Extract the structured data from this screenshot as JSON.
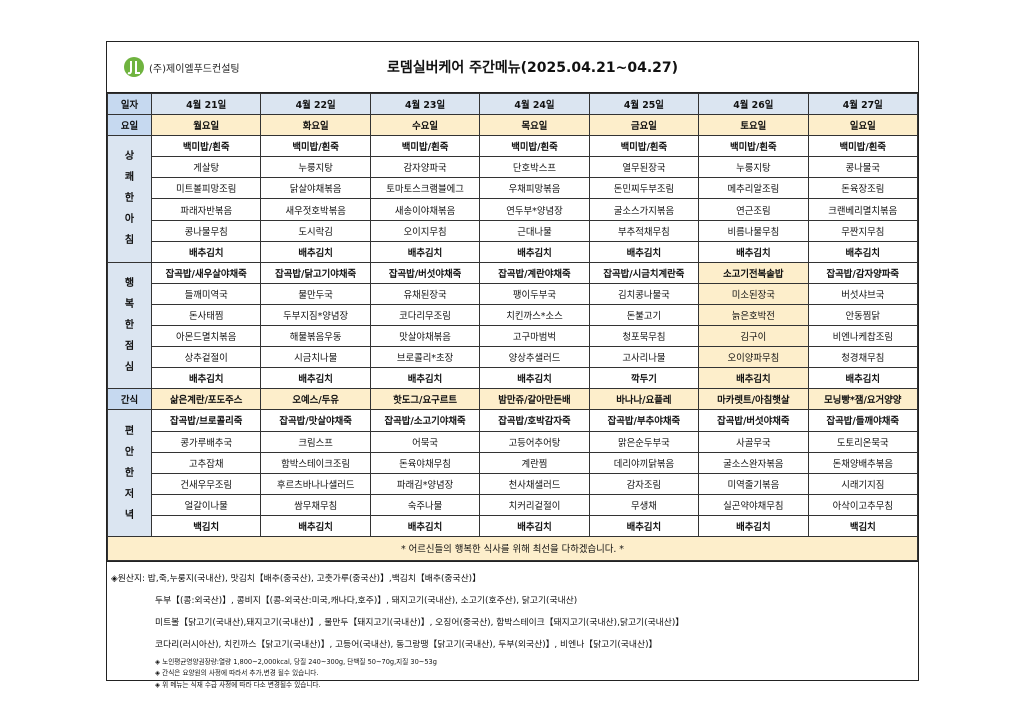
{
  "header": {
    "company": "(주)제이엘푸드컨설팅",
    "title": "로뎀실버케어 주간메뉴(2025.04.21~04.27)"
  },
  "labels": {
    "date": "일자",
    "weekday": "요일",
    "snack": "간식"
  },
  "sections": {
    "breakfast": "상쾌한아침",
    "lunch": "행복한점심",
    "dinner": "편안한저녁"
  },
  "days": [
    "4월 21일",
    "4월 22일",
    "4월 23일",
    "4월 24일",
    "4월 25일",
    "4월 26일",
    "4월 27일"
  ],
  "weekdays": [
    "월요일",
    "화요일",
    "수요일",
    "목요일",
    "금요일",
    "토요일",
    "일요일"
  ],
  "breakfast": [
    [
      "백미밥/흰죽",
      "백미밥/흰죽",
      "백미밥/흰죽",
      "백미밥/흰죽",
      "백미밥/흰죽",
      "백미밥/흰죽",
      "백미밥/흰죽"
    ],
    [
      "게살탕",
      "누룽지탕",
      "감자양파국",
      "단호박스프",
      "열무된장국",
      "누룽지탕",
      "콩나물국"
    ],
    [
      "미트볼피망조림",
      "닭살야채볶음",
      "토마토스크램블에그",
      "우채피망볶음",
      "돈민찌두부조림",
      "메추리알조림",
      "돈육장조림"
    ],
    [
      "파래자반볶음",
      "새우젓호박볶음",
      "새송이야채볶음",
      "연두부*양념장",
      "굴소스가지볶음",
      "연근조림",
      "크랜베리멸치볶음"
    ],
    [
      "콩나물무침",
      "도시락김",
      "오이지무침",
      "근대나물",
      "부추적채무침",
      "비름나물무침",
      "무짠지무침"
    ],
    [
      "배추김치",
      "배추김치",
      "배추김치",
      "배추김치",
      "배추김치",
      "배추김치",
      "배추김치"
    ]
  ],
  "lunch": [
    [
      "잡곡밥/새우살야채죽",
      "잡곡밥/닭고기야채죽",
      "잡곡밥/버섯야채죽",
      "잡곡밥/계란야채죽",
      "잡곡밥/시금치계란죽",
      "소고기전복솥밥",
      "잡곡밥/감자양파죽"
    ],
    [
      "들깨미역국",
      "물만두국",
      "유채된장국",
      "팽이두부국",
      "김치콩나물국",
      "미소된장국",
      "버섯샤브국"
    ],
    [
      "돈사태찜",
      "두부지짐*양념장",
      "코다리무조림",
      "치킨까스*소스",
      "돈불고기",
      "늙은호박전",
      "안동찜닭"
    ],
    [
      "아몬드멸치볶음",
      "해물볶음우동",
      "맛살야채볶음",
      "고구마범벅",
      "청포묵무침",
      "김구이",
      "비엔나케찹조림"
    ],
    [
      "상추겉절이",
      "시금치나물",
      "브로콜리*초장",
      "양상추샐러드",
      "고사리나물",
      "오이양파무침",
      "청경채무침"
    ],
    [
      "배추김치",
      "배추김치",
      "배추김치",
      "배추김치",
      "깍두기",
      "배추김치",
      "배추김치"
    ]
  ],
  "snack": [
    "삶은계란/포도주스",
    "오예스/두유",
    "핫도그/요구르트",
    "밤만쥬/갈아만든배",
    "바나나/요플레",
    "마카렛트/아침햇살",
    "모닝빵*잼/요거양양"
  ],
  "dinner": [
    [
      "잡곡밥/브로콜리죽",
      "잡곡밥/맛살야채죽",
      "잡곡밥/소고기야채죽",
      "잡곡밥/호박감자죽",
      "잡곡밥/부추야채죽",
      "잡곡밥/버섯야채죽",
      "잡곡밥/들깨야채죽"
    ],
    [
      "콩가루배추국",
      "크림스프",
      "어묵국",
      "고등어추어탕",
      "맑은순두부국",
      "사골무국",
      "도토리온묵국"
    ],
    [
      "고추잡채",
      "함박스테이크조림",
      "돈육야채무침",
      "계란찜",
      "데리야끼닭볶음",
      "굴소스완자볶음",
      "돈채양배추볶음"
    ],
    [
      "건새우무조림",
      "후르츠바나나샐러드",
      "파래김*양념장",
      "천사채샐러드",
      "감자조림",
      "미역줄기볶음",
      "시래기지짐"
    ],
    [
      "얼갈이나물",
      "쌈무채무침",
      "숙주나물",
      "치커리겉절이",
      "무생채",
      "실곤약야채무침",
      "아삭이고추무침"
    ],
    [
      "백김치",
      "배추김치",
      "배추김치",
      "배추김치",
      "배추김치",
      "배추김치",
      "백김치"
    ]
  ],
  "notice": "* 어르신들의 행복한 식사를 위해 최선을 다하겠습니다. *",
  "origin": [
    "◈원산지: 밥,죽,누룽지(국내산), 맛김치【배추(중국산), 고춧가루(중국산)】,백김치【배추(중국산)】",
    "두부【(콩:외국산)】, 콩비지【(콩-외국산:미국,캐나다,호주)】, 돼지고기(국내산), 소고기(호주산), 닭고기(국내산)",
    "미트볼【닭고기(국내산),돼지고기(국내산)】, 물만두【돼지고기(국내산)】, 오징어(중국산), 함박스테이크【돼지고기(국내산),닭고기(국내산)】",
    "코다리(러시아산), 치킨까스【닭고기(국내산)】, 고등어(국내산), 동그랑땡【닭고기(국내산), 두부(외국산)】, 비엔나【닭고기(국내산)】"
  ],
  "footnotes": [
    "◈ 노인평균영양권장량:열량 1,800~2,000kcal, 당질 240~300g, 단백질 50~70g,지질 30~53g",
    "◈ 간식은 요양원의 사정에 따라서 추가,변경 될수 있습니다.",
    "◈ 위 메뉴는 식재 수급 사정에 따라 다소 변경될수 있습니다."
  ],
  "highlight_color": "#fdeecb",
  "header_color": "#c6d9f0"
}
